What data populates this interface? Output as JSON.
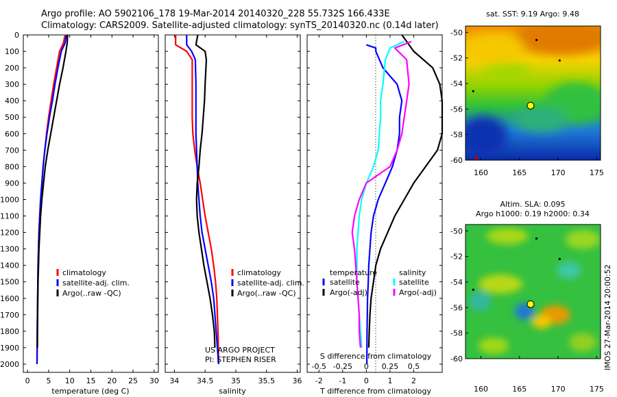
{
  "header": {
    "line1": "Argo profile: AO 5902106_178 19-Mar-2014 20140320_228 55.732S 166.433E",
    "line2": "Climatology: CARS2009. Satellite-adjusted climatology: synTS_20140320.nc (0.14d later)"
  },
  "colors": {
    "climatology": "#ff0000",
    "satellite": "#0000ff",
    "argo": "#000000",
    "satellite_salinity": "#00ffff",
    "argo_adj_salinity": "#ff00ff"
  },
  "chart_data": [
    {
      "type": "line",
      "xlabel": "temperature (deg C)",
      "ylim": [
        2050,
        0
      ],
      "xlim": [
        -1,
        31
      ],
      "xticks": [
        0,
        5,
        10,
        15,
        20,
        25,
        30
      ],
      "yticks": [
        0,
        100,
        200,
        300,
        400,
        500,
        600,
        700,
        800,
        900,
        1000,
        1100,
        1200,
        1300,
        1400,
        1500,
        1600,
        1700,
        1800,
        1900,
        2000
      ],
      "legend": {
        "entries": [
          "climatology",
          "satellite-adj. clim.",
          "Argo(..raw -QC)"
        ],
        "placement": "center-right"
      },
      "series": [
        {
          "name": "climatology",
          "color": "#ff0000",
          "x": [
            8.9,
            8.5,
            7.6,
            6.9,
            6.2,
            5.6,
            5.0,
            4.5,
            4.1,
            3.7,
            3.4,
            3.1,
            2.9,
            2.7,
            2.6,
            2.5,
            2.45,
            2.4,
            2.35,
            2.3,
            2.25
          ],
          "y": [
            0,
            50,
            100,
            200,
            300,
            400,
            500,
            600,
            700,
            800,
            900,
            1000,
            1100,
            1200,
            1300,
            1400,
            1500,
            1600,
            1700,
            1800,
            2000
          ]
        },
        {
          "name": "satellite-adj. clim.",
          "color": "#0000ff",
          "x": [
            9.2,
            8.9,
            8.0,
            7.2,
            6.5,
            5.9,
            5.2,
            4.6,
            4.1,
            3.7,
            3.4,
            3.1,
            2.9,
            2.7,
            2.6,
            2.5,
            2.45,
            2.4,
            2.35,
            2.3,
            2.25
          ],
          "y": [
            0,
            50,
            100,
            200,
            300,
            400,
            500,
            600,
            700,
            800,
            900,
            1000,
            1100,
            1200,
            1300,
            1400,
            1500,
            1600,
            1700,
            1800,
            2000
          ]
        },
        {
          "name": "Argo(..raw -QC)",
          "color": "#000000",
          "x": [
            9.5,
            9.4,
            9.1,
            8.4,
            7.6,
            6.9,
            6.2,
            5.5,
            4.8,
            4.2,
            3.8,
            3.4,
            3.1,
            2.9,
            2.7,
            2.6,
            2.5,
            2.45,
            2.4,
            2.35
          ],
          "y": [
            0,
            50,
            100,
            200,
            300,
            400,
            500,
            600,
            700,
            800,
            900,
            1000,
            1100,
            1200,
            1300,
            1400,
            1500,
            1600,
            1700,
            1900
          ]
        }
      ]
    },
    {
      "type": "line",
      "xlabel": "salinity",
      "ylim": [
        2050,
        0
      ],
      "xlim": [
        33.85,
        36.05
      ],
      "xticks": [
        34,
        34.5,
        35,
        35.5,
        36
      ],
      "legend": {
        "entries": [
          "climatology",
          "satellite-adj. clim.",
          "Argo(..raw -QC)"
        ],
        "placement": "center-right"
      },
      "annotations": [
        "US ARGO PROJECT",
        "PI: STEPHEN RISER"
      ],
      "series": [
        {
          "name": "climatology",
          "color": "#ff0000",
          "x": [
            34.02,
            34.02,
            34.2,
            34.29,
            34.29,
            34.29,
            34.29,
            34.29,
            34.3,
            34.33,
            34.37,
            34.42,
            34.46,
            34.5,
            34.55,
            34.6,
            34.64,
            34.67,
            34.69,
            34.71,
            34.72
          ],
          "y": [
            0,
            60,
            100,
            150,
            200,
            300,
            400,
            500,
            600,
            700,
            800,
            900,
            1000,
            1100,
            1200,
            1300,
            1400,
            1500,
            1600,
            1800,
            2000
          ]
        },
        {
          "name": "satellite-adj. clim.",
          "color": "#0000ff",
          "x": [
            34.2,
            34.2,
            34.28,
            34.34,
            34.35,
            34.35,
            34.35,
            34.35,
            34.36,
            34.37,
            34.38,
            34.4,
            34.42,
            34.45,
            34.5,
            34.55,
            34.6,
            34.64,
            34.68,
            34.72
          ],
          "y": [
            0,
            60,
            100,
            150,
            300,
            400,
            500,
            600,
            700,
            800,
            900,
            1000,
            1100,
            1200,
            1300,
            1400,
            1500,
            1600,
            1800,
            2000
          ]
        },
        {
          "name": "Argo(..raw -QC)",
          "color": "#000000",
          "x": [
            34.38,
            34.35,
            34.5,
            34.52,
            34.5,
            34.49,
            34.47,
            34.45,
            34.42,
            34.4,
            34.37,
            34.36,
            34.37,
            34.4,
            34.44,
            34.48,
            34.53,
            34.58,
            34.62,
            34.65,
            34.66
          ],
          "y": [
            0,
            60,
            100,
            150,
            300,
            400,
            500,
            600,
            700,
            800,
            900,
            1000,
            1100,
            1200,
            1300,
            1400,
            1500,
            1600,
            1700,
            1800,
            1900
          ]
        }
      ]
    },
    {
      "type": "line",
      "xlabel": "T difference from climatology",
      "xlabel_top": "S difference from climatology",
      "ylim": [
        2050,
        0
      ],
      "xlim": [
        -2.5,
        3.2
      ],
      "xticks": [
        -2,
        -1,
        0,
        1,
        2
      ],
      "secondary_xticks": {
        "labels": [
          "-0.5",
          "-0.25",
          "0",
          "0.25",
          "0.5"
        ],
        "at": [
          -2,
          -1,
          0,
          1,
          2
        ]
      },
      "legend": {
        "entries": [
          "temperature",
          "satellite",
          "Argo(-adj)",
          "salinity",
          "satellite",
          "Argo(-adj)"
        ],
        "placement": "bottom"
      },
      "series": [
        {
          "name": "satellite",
          "group": "temperature",
          "color": "#0000ff",
          "x": [
            0.0,
            0.4,
            0.4,
            0.7,
            1.3,
            1.5,
            1.4,
            1.4,
            1.3,
            1.1,
            0.8,
            0.5,
            0.3,
            0.2,
            0.15,
            0.1,
            0.08,
            0.05,
            0.04,
            0.03,
            0.02
          ],
          "y": [
            60,
            80,
            100,
            200,
            300,
            400,
            500,
            600,
            700,
            800,
            900,
            1000,
            1100,
            1200,
            1300,
            1400,
            1500,
            1600,
            1700,
            1800,
            2000
          ]
        },
        {
          "name": "Argo(-adj)",
          "group": "temperature",
          "color": "#000000",
          "x": [
            1.5,
            1.7,
            2.0,
            2.8,
            3.1,
            3.2,
            3.2,
            3.2,
            3.0,
            2.5,
            2.0,
            1.6,
            1.2,
            0.9,
            0.6,
            0.4,
            0.3,
            0.2,
            0.15,
            0.12,
            0.1
          ],
          "y": [
            0,
            40,
            100,
            200,
            300,
            400,
            500,
            600,
            700,
            800,
            900,
            1000,
            1100,
            1200,
            1300,
            1400,
            1500,
            1600,
            1700,
            1800,
            1900
          ]
        },
        {
          "name": "satellite",
          "group": "salinity",
          "color": "#00ffff",
          "x": [
            1.6,
            1.0,
            0.8,
            0.7,
            0.6,
            0.6,
            0.55,
            0.5,
            0.3,
            0.0,
            -0.2,
            -0.3,
            -0.35,
            -0.4,
            -0.4,
            -0.4,
            -0.35,
            -0.3,
            -0.25,
            -0.2
          ],
          "y": [
            40,
            80,
            150,
            300,
            400,
            500,
            600,
            700,
            800,
            900,
            1000,
            1100,
            1200,
            1300,
            1400,
            1500,
            1600,
            1700,
            1800,
            1900
          ]
        },
        {
          "name": "Argo(-adj)",
          "group": "salinity",
          "color": "#ff00ff",
          "x": [
            1.9,
            1.2,
            1.7,
            1.8,
            1.7,
            1.6,
            1.5,
            1.3,
            1.0,
            0.0,
            -0.3,
            -0.5,
            -0.6,
            -0.5,
            -0.45,
            -0.4,
            -0.35,
            -0.3,
            -0.3,
            -0.25
          ],
          "y": [
            40,
            80,
            150,
            300,
            400,
            500,
            600,
            700,
            800,
            900,
            1000,
            1100,
            1200,
            1300,
            1400,
            1500,
            1600,
            1700,
            1800,
            1900
          ]
        }
      ]
    },
    {
      "type": "heatmap",
      "title": "sat. SST: 9.19 Argo: 9.48",
      "xlim": [
        158,
        175.5
      ],
      "ylim": [
        -60,
        -49.5
      ],
      "xticks": [
        160,
        165,
        170,
        175
      ],
      "yticks": [
        -50,
        -52,
        -54,
        -56,
        -58,
        -60
      ],
      "marker": {
        "lon": 166.433,
        "lat": -55.732
      }
    },
    {
      "type": "heatmap",
      "title": "Altim. SLA: 0.095",
      "subtitle": "Argo h1000: 0.19 h2000: 0.34",
      "xlim": [
        158,
        175.5
      ],
      "ylim": [
        -60,
        -49.5
      ],
      "xticks": [
        160,
        165,
        170,
        175
      ],
      "yticks": [
        -50,
        -52,
        -54,
        -56,
        -58,
        -60
      ],
      "marker": {
        "lon": 166.433,
        "lat": -55.732
      }
    }
  ],
  "side_label": "IMOS 27-Mar-2014 20:00:52"
}
